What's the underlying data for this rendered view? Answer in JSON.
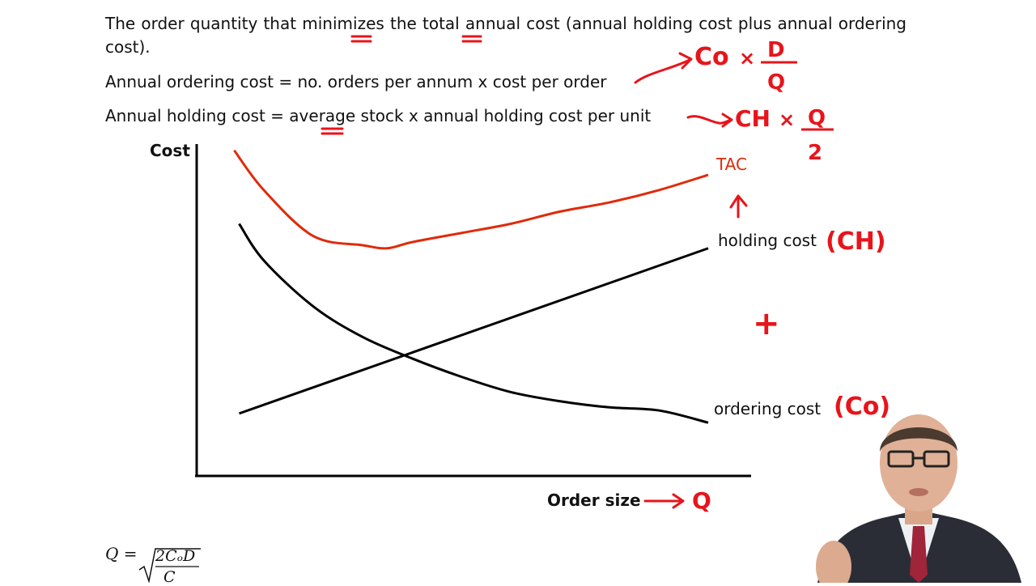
{
  "text": {
    "intro": "The order quantity that minimizes the total annual cost (annual holding cost plus annual ordering cost).",
    "ordering_def": "Annual ordering cost = no. orders per annum x cost per order",
    "holding_def": "Annual holding cost = average stock x annual holding cost per unit"
  },
  "annotations": {
    "ordering_formula": {
      "symbol": "Co",
      "operator": "×",
      "numerator": "D",
      "denominator": "Q"
    },
    "holding_formula": {
      "symbol": "CH",
      "operator": "×",
      "numerator": "Q",
      "denominator": "2"
    },
    "ordering_symbol": "(Co)",
    "holding_symbol": "(CH)",
    "plus": "+",
    "q_symbol": "Q"
  },
  "formula": {
    "lhs": "Q =",
    "numerator": "2CₒD",
    "denominator": "C"
  },
  "colors": {
    "tac": "#e02a0a",
    "ink_red": "#e8141b",
    "curve": "#000000"
  },
  "chart_data": {
    "type": "line",
    "xlabel": "Order size",
    "ylabel": "Cost",
    "xlim": [
      0,
      100
    ],
    "ylim": [
      0,
      100
    ],
    "grid": false,
    "series": [
      {
        "name": "TAC",
        "color": "#e02a0a",
        "x": [
          4,
          10,
          20,
          30,
          35,
          40,
          50,
          60,
          70,
          80,
          90,
          100
        ],
        "y": [
          99,
          86,
          71,
          68,
          67,
          69,
          72,
          75,
          79,
          82,
          86,
          91
        ]
      },
      {
        "name": "holding cost",
        "color": "#000000",
        "x": [
          5,
          100
        ],
        "y": [
          13,
          67
        ]
      },
      {
        "name": "ordering cost",
        "color": "#000000",
        "x": [
          5,
          10,
          20,
          30,
          40,
          50,
          60,
          70,
          80,
          90,
          100
        ],
        "y": [
          75,
          63,
          48,
          38,
          31,
          25,
          20,
          17,
          15,
          14,
          10
        ]
      }
    ]
  }
}
